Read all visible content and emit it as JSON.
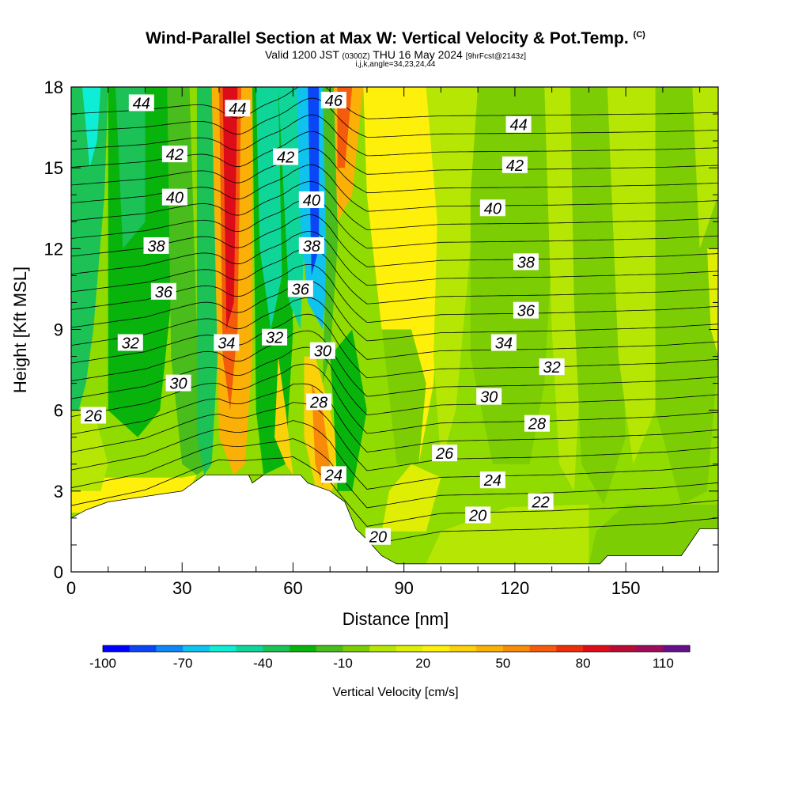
{
  "title": {
    "main": "Wind-Parallel Section at Max W: Vertical Velocity & Pot.Temp.",
    "copyright": "(C)",
    "valid_prefix": "Valid 1200 JST",
    "valid_utc": "(0300Z)",
    "valid_day": "THU 16 May 2024",
    "forecast": "[9hrFcst@2143z]",
    "indices": "i,j,k,angle=34,23,24,44"
  },
  "chart_data": {
    "type": "heatmap",
    "xlabel": "Distance [nm]",
    "ylabel": "Height [Kft MSL]",
    "xlim": [
      0,
      175
    ],
    "ylim": [
      0,
      18
    ],
    "x_ticks": [
      0,
      30,
      60,
      90,
      120,
      150
    ],
    "y_ticks": [
      0,
      3,
      6,
      9,
      12,
      15,
      18
    ],
    "colorbar": {
      "label": "Vertical Velocity [cm/s]",
      "range": [
        -100,
        120
      ],
      "tick_labels": [
        -100,
        -70,
        -40,
        -10,
        20,
        50,
        80,
        110
      ],
      "colors": [
        "#0000ff",
        "#0a46f5",
        "#0f87f5",
        "#10c3ef",
        "#0eedd5",
        "#0fd698",
        "#1cc256",
        "#08b40c",
        "#48bd1c",
        "#7ccd04",
        "#b6e704",
        "#e0ee04",
        "#fff00b",
        "#fbd10a",
        "#fab006",
        "#f88c0a",
        "#f45c0c",
        "#ec2e0c",
        "#dc0c18",
        "#b80c34",
        "#9c0c58",
        "#68108c"
      ]
    },
    "theta_contour_labels": [
      {
        "label": "44",
        "x": 19,
        "y": 17.4
      },
      {
        "label": "42",
        "x": 28,
        "y": 15.5
      },
      {
        "label": "40",
        "x": 28,
        "y": 13.9
      },
      {
        "label": "38",
        "x": 23,
        "y": 12.1
      },
      {
        "label": "36",
        "x": 25,
        "y": 10.4
      },
      {
        "label": "32",
        "x": 16,
        "y": 8.5
      },
      {
        "label": "30",
        "x": 29,
        "y": 7.0
      },
      {
        "label": "26",
        "x": 6,
        "y": 5.8
      },
      {
        "label": "44",
        "x": 45,
        "y": 17.2
      },
      {
        "label": "42",
        "x": 58,
        "y": 15.4
      },
      {
        "label": "40",
        "x": 65,
        "y": 13.8
      },
      {
        "label": "38",
        "x": 65,
        "y": 12.1
      },
      {
        "label": "36",
        "x": 62,
        "y": 10.5
      },
      {
        "label": "34",
        "x": 42,
        "y": 8.5
      },
      {
        "label": "32",
        "x": 55,
        "y": 8.7
      },
      {
        "label": "30",
        "x": 68,
        "y": 8.2
      },
      {
        "label": "28",
        "x": 67,
        "y": 6.3
      },
      {
        "label": "24",
        "x": 71,
        "y": 3.6
      },
      {
        "label": "20",
        "x": 83,
        "y": 1.3
      },
      {
        "label": "46",
        "x": 71,
        "y": 17.5
      },
      {
        "label": "44",
        "x": 121,
        "y": 16.6
      },
      {
        "label": "42",
        "x": 120,
        "y": 15.1
      },
      {
        "label": "40",
        "x": 114,
        "y": 13.5
      },
      {
        "label": "38",
        "x": 123,
        "y": 11.5
      },
      {
        "label": "36",
        "x": 123,
        "y": 9.7
      },
      {
        "label": "34",
        "x": 117,
        "y": 8.5
      },
      {
        "label": "32",
        "x": 130,
        "y": 7.6
      },
      {
        "label": "30",
        "x": 113,
        "y": 6.5
      },
      {
        "label": "28",
        "x": 126,
        "y": 5.5
      },
      {
        "label": "26",
        "x": 101,
        "y": 4.4
      },
      {
        "label": "24",
        "x": 114,
        "y": 3.4
      },
      {
        "label": "22",
        "x": 127,
        "y": 2.6
      },
      {
        "label": "20",
        "x": 110,
        "y": 2.1
      }
    ],
    "terrain_top": [
      [
        0,
        2.0
      ],
      [
        4,
        2.3
      ],
      [
        10,
        2.6
      ],
      [
        20,
        2.8
      ],
      [
        30,
        3.0
      ],
      [
        36,
        3.6
      ],
      [
        48,
        3.6
      ],
      [
        49,
        3.3
      ],
      [
        52,
        3.6
      ],
      [
        62,
        3.6
      ],
      [
        64,
        3.3
      ],
      [
        70,
        3.0
      ],
      [
        74,
        2.6
      ],
      [
        77,
        1.6
      ],
      [
        80,
        1.2
      ],
      [
        84,
        0.6
      ],
      [
        88,
        0.3
      ],
      [
        130,
        0.3
      ],
      [
        143,
        0.3
      ],
      [
        145,
        0.6
      ],
      [
        165,
        0.6
      ],
      [
        170,
        1.6
      ],
      [
        175,
        1.6
      ]
    ]
  },
  "colors": {
    "background_field": "#90dc00",
    "contour_line": "#000000",
    "label_box": "#ffffff",
    "terrain": "#ffffff"
  }
}
